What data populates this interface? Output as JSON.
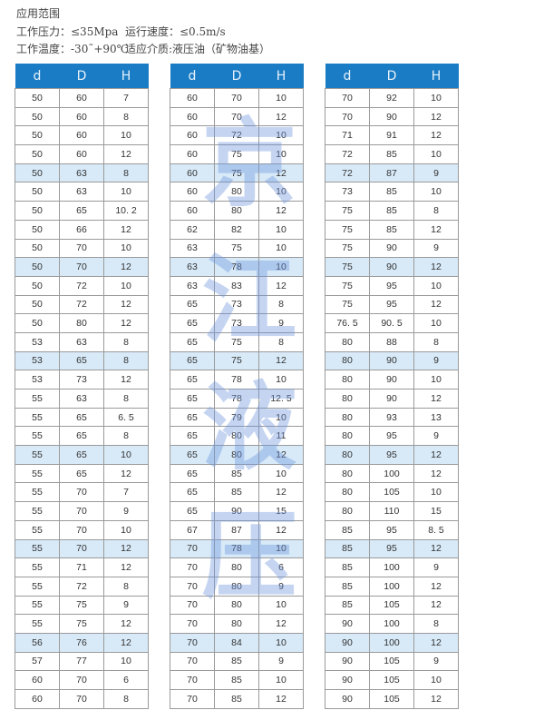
{
  "specs": {
    "title": "应用范围",
    "pressure": "工作压力：≤35Mpa",
    "speed": "运行速度：≤0.5m/s",
    "temperature": "工作温度：-30˜+90℃",
    "medium": "适应介质:液压油（矿物油基）"
  },
  "headers": [
    "d",
    "D",
    "H"
  ],
  "watermark": [
    "京",
    "江",
    "液",
    "压"
  ],
  "colors": {
    "header": "#1a7cc4",
    "highlight_row": "#d8eaf8"
  },
  "tables": [
    [
      [
        "50",
        "60",
        "7"
      ],
      [
        "50",
        "60",
        "8"
      ],
      [
        "50",
        "60",
        "10"
      ],
      [
        "50",
        "60",
        "12"
      ],
      [
        "50",
        "63",
        "8"
      ],
      [
        "50",
        "63",
        "10"
      ],
      [
        "50",
        "65",
        "10. 2"
      ],
      [
        "50",
        "66",
        "12"
      ],
      [
        "50",
        "70",
        "10"
      ],
      [
        "50",
        "70",
        "12"
      ],
      [
        "50",
        "72",
        "10"
      ],
      [
        "50",
        "72",
        "12"
      ],
      [
        "50",
        "80",
        "12"
      ],
      [
        "53",
        "63",
        "8"
      ],
      [
        "53",
        "65",
        "8"
      ],
      [
        "53",
        "73",
        "12"
      ],
      [
        "55",
        "63",
        "8"
      ],
      [
        "55",
        "65",
        "6. 5"
      ],
      [
        "55",
        "65",
        "8"
      ],
      [
        "55",
        "65",
        "10"
      ],
      [
        "55",
        "65",
        "12"
      ],
      [
        "55",
        "70",
        "7"
      ],
      [
        "55",
        "70",
        "9"
      ],
      [
        "55",
        "70",
        "10"
      ],
      [
        "55",
        "70",
        "12"
      ],
      [
        "55",
        "71",
        "12"
      ],
      [
        "55",
        "72",
        "8"
      ],
      [
        "55",
        "75",
        "9"
      ],
      [
        "55",
        "75",
        "12"
      ],
      [
        "56",
        "76",
        "12"
      ],
      [
        "57",
        "77",
        "10"
      ],
      [
        "60",
        "70",
        "6"
      ],
      [
        "60",
        "70",
        "8"
      ]
    ],
    [
      [
        "60",
        "70",
        "10"
      ],
      [
        "60",
        "70",
        "12"
      ],
      [
        "60",
        "72",
        "10"
      ],
      [
        "60",
        "75",
        "10"
      ],
      [
        "60",
        "75",
        "12"
      ],
      [
        "60",
        "80",
        "10"
      ],
      [
        "60",
        "80",
        "12"
      ],
      [
        "62",
        "82",
        "10"
      ],
      [
        "63",
        "75",
        "10"
      ],
      [
        "63",
        "78",
        "10"
      ],
      [
        "63",
        "83",
        "12"
      ],
      [
        "65",
        "73",
        "8"
      ],
      [
        "65",
        "73",
        "9"
      ],
      [
        "65",
        "75",
        "8"
      ],
      [
        "65",
        "75",
        "12"
      ],
      [
        "65",
        "78",
        "10"
      ],
      [
        "65",
        "78",
        "12. 5"
      ],
      [
        "65",
        "79",
        "10"
      ],
      [
        "65",
        "80",
        "11"
      ],
      [
        "65",
        "80",
        "12"
      ],
      [
        "65",
        "85",
        "10"
      ],
      [
        "65",
        "85",
        "12"
      ],
      [
        "65",
        "90",
        "15"
      ],
      [
        "67",
        "87",
        "12"
      ],
      [
        "70",
        "78",
        "10"
      ],
      [
        "70",
        "80",
        "6"
      ],
      [
        "70",
        "80",
        "9"
      ],
      [
        "70",
        "80",
        "10"
      ],
      [
        "70",
        "80",
        "12"
      ],
      [
        "70",
        "84",
        "10"
      ],
      [
        "70",
        "85",
        "9"
      ],
      [
        "70",
        "85",
        "10"
      ],
      [
        "70",
        "85",
        "12"
      ]
    ],
    [
      [
        "70",
        "92",
        "10"
      ],
      [
        "70",
        "90",
        "12"
      ],
      [
        "71",
        "91",
        "12"
      ],
      [
        "72",
        "85",
        "10"
      ],
      [
        "72",
        "87",
        "9"
      ],
      [
        "73",
        "85",
        "10"
      ],
      [
        "75",
        "85",
        "8"
      ],
      [
        "75",
        "85",
        "12"
      ],
      [
        "75",
        "90",
        "9"
      ],
      [
        "75",
        "90",
        "12"
      ],
      [
        "75",
        "95",
        "10"
      ],
      [
        "75",
        "95",
        "12"
      ],
      [
        "76. 5",
        "90. 5",
        "10"
      ],
      [
        "80",
        "88",
        "8"
      ],
      [
        "80",
        "90",
        "9"
      ],
      [
        "80",
        "90",
        "10"
      ],
      [
        "80",
        "90",
        "12"
      ],
      [
        "80",
        "93",
        "13"
      ],
      [
        "80",
        "95",
        "9"
      ],
      [
        "80",
        "95",
        "12"
      ],
      [
        "80",
        "100",
        "12"
      ],
      [
        "80",
        "105",
        "10"
      ],
      [
        "80",
        "110",
        "15"
      ],
      [
        "85",
        "95",
        "8. 5"
      ],
      [
        "85",
        "95",
        "12"
      ],
      [
        "85",
        "100",
        "9"
      ],
      [
        "85",
        "100",
        "12"
      ],
      [
        "85",
        "105",
        "12"
      ],
      [
        "90",
        "100",
        "8"
      ],
      [
        "90",
        "100",
        "12"
      ],
      [
        "90",
        "105",
        "9"
      ],
      [
        "90",
        "105",
        "10"
      ],
      [
        "90",
        "105",
        "12"
      ]
    ]
  ]
}
